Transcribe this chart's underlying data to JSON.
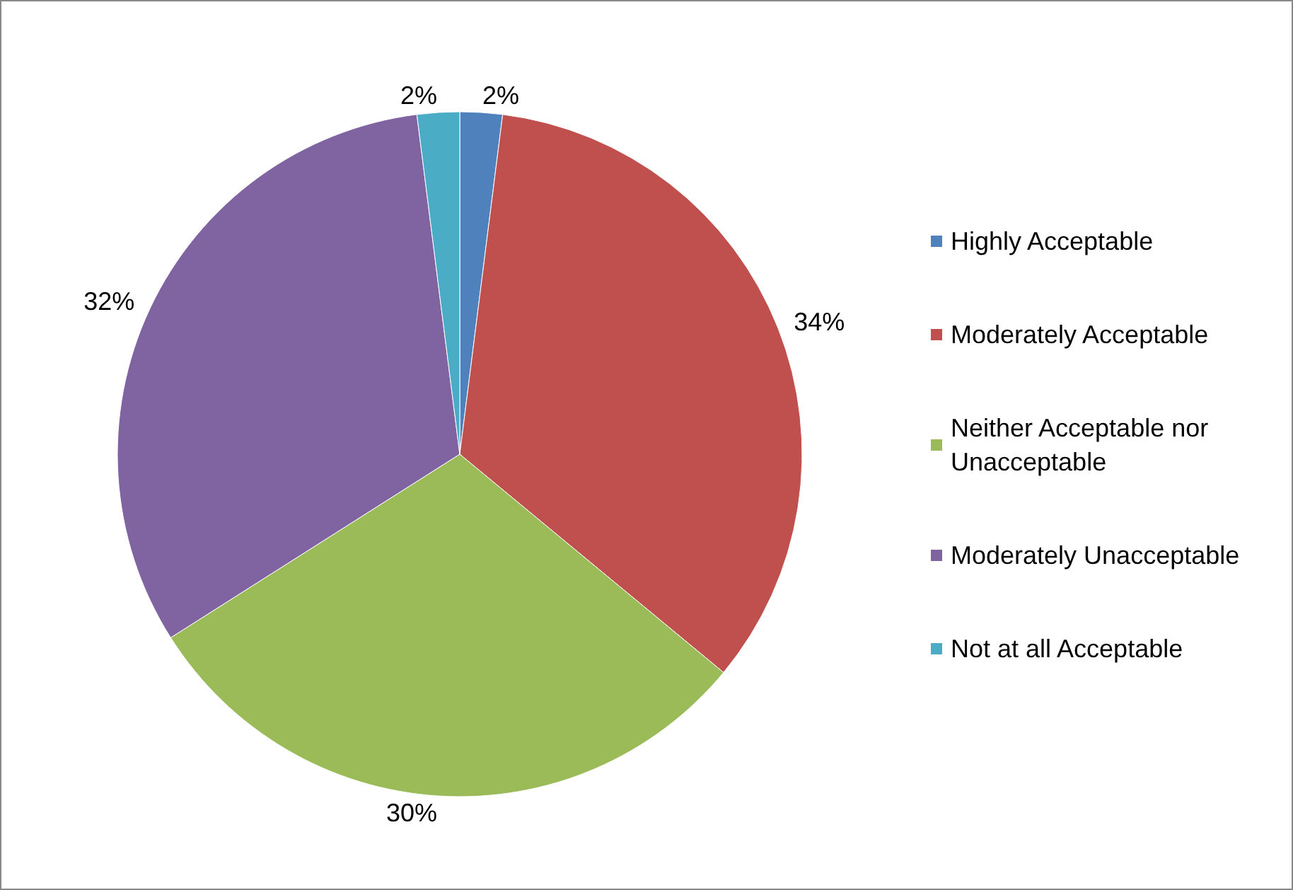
{
  "chart_data": {
    "type": "pie",
    "categories": [
      "Highly Acceptable",
      "Moderately Acceptable",
      "Neither Acceptable nor Unacceptable",
      "Moderately Unacceptable",
      "Not at all Acceptable"
    ],
    "values": [
      2,
      34,
      30,
      32,
      2
    ],
    "colors": [
      "#4f81bd",
      "#c0504d",
      "#9bbb59",
      "#8064a2",
      "#4bacc6"
    ],
    "value_labels": [
      "2%",
      "34%",
      "30%",
      "32%",
      "2%"
    ],
    "legend": "right"
  }
}
